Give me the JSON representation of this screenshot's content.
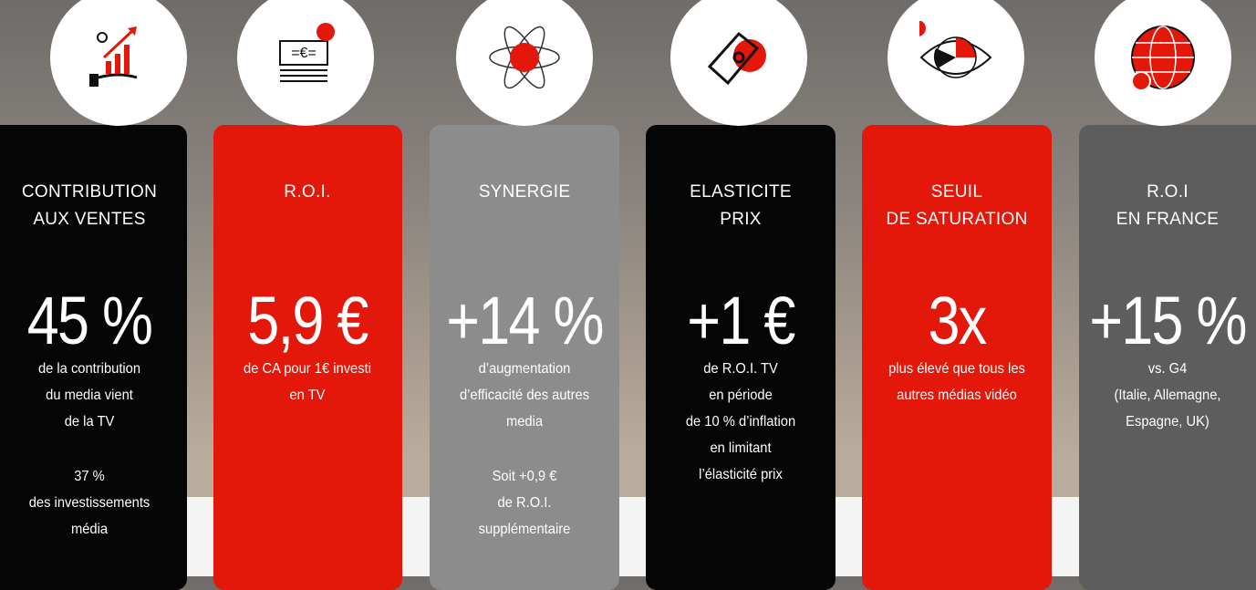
{
  "cards": [
    {
      "title": [
        "CONTRIBUTION",
        "AUX VENTES"
      ],
      "value": "45 %",
      "description": [
        "de la contribution",
        "du media vient",
        "de la TV"
      ],
      "note": [
        "37 %",
        "des investissements",
        "média"
      ]
    },
    {
      "title": [
        "R.O.I."
      ],
      "value": "5,9 €",
      "description": [
        "de CA pour 1€ investi",
        "en TV"
      ],
      "note": []
    },
    {
      "title": [
        "SYNERGIE"
      ],
      "value": "+14 %",
      "description": [
        "d’augmentation",
        "d’efficacité des autres",
        "media"
      ],
      "note": [
        "Soit +0,9 €",
        "de R.O.I.",
        "supplémentaire"
      ]
    },
    {
      "title": [
        "ELASTICITE",
        "PRIX"
      ],
      "value": "+1 €",
      "description": [
        "de R.O.I. TV",
        "en période",
        "de 10 % d’inflation",
        "en limitant",
        "l’élasticité prix"
      ],
      "note": []
    },
    {
      "title": [
        "SEUIL",
        "DE SATURATION"
      ],
      "value": "3x",
      "description": [
        "plus élevé que tous les",
        "autres médias vidéo"
      ],
      "note": []
    },
    {
      "title": [
        "R.O.I",
        "EN FRANCE"
      ],
      "value": "+15 %",
      "description": [
        "vs. G4",
        "(Italie, Allemagne,",
        "Espagne, UK)"
      ],
      "note": []
    }
  ]
}
